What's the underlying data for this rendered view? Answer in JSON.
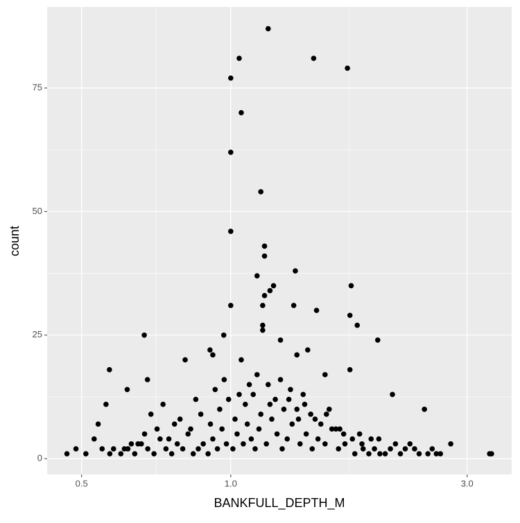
{
  "chart_data": {
    "type": "scatter",
    "x_label": "BANKFULL_DEPTH_M",
    "y_label": "count",
    "x_scale": "log",
    "grid": true,
    "color": "#000000",
    "xlim": [
      0.426,
      3.69
    ],
    "ylim": [
      -3.2,
      91.4
    ],
    "xticks": [
      0.5,
      {
        "value": 1,
        "label": "1.0"
      },
      {
        "value": 3,
        "label": "3.0"
      }
    ],
    "yticks": [
      0,
      25,
      50,
      75
    ],
    "series": [
      {
        "name": "count",
        "color": "#000000",
        "x": [
          1.19,
          1.04,
          1.47,
          1.72,
          1.0,
          1.05,
          1.0,
          1.15,
          1.0,
          1.17,
          1.17,
          1.35,
          1.13,
          1.22,
          1.75,
          1.2,
          1.17,
          1.0,
          1.16,
          1.34,
          1.49,
          1.74,
          1.8,
          1.16,
          1.16,
          0.968,
          0.669,
          1.98,
          1.26,
          0.908,
          1.43,
          0.92,
          1.36,
          0.569,
          0.809,
          1.05,
          1.74,
          1.55,
          0.679,
          2.12,
          0.618,
          0.56,
          2.46,
          0.54,
          2.78,
          3.33,
          3.36,
          0.467,
          0.487,
          0.53,
          0.6,
          0.62,
          0.64,
          0.66,
          0.68,
          0.7,
          0.72,
          0.74,
          0.76,
          0.78,
          0.8,
          0.82,
          0.84,
          0.86,
          0.88,
          0.9,
          0.92,
          0.94,
          0.96,
          0.98,
          1.01,
          1.03,
          1.06,
          1.08,
          1.1,
          1.12,
          1.14,
          1.18,
          1.21,
          1.24,
          1.27,
          1.3,
          1.33,
          1.38,
          1.42,
          1.46,
          1.5,
          1.55,
          1.6,
          1.65,
          1.7,
          1.78,
          1.85,
          1.92,
          2.0,
          2.1,
          2.2,
          2.3,
          2.4,
          2.55,
          2.65,
          0.58,
          0.63,
          0.67,
          0.71,
          0.75,
          0.79,
          0.83,
          0.87,
          0.91,
          0.95,
          0.99,
          1.02,
          1.07,
          1.11,
          1.15,
          1.19,
          1.23,
          1.28,
          1.32,
          1.37,
          1.41,
          1.45,
          1.52,
          1.58,
          1.63,
          1.69,
          1.76,
          1.84,
          1.95,
          2.05,
          0.69,
          0.73,
          0.77,
          0.85,
          0.93,
          0.97,
          1.04,
          1.09,
          1.13,
          1.2,
          1.26,
          1.31,
          1.36,
          1.4,
          1.48,
          1.56,
          1.66,
          1.82,
          1.99,
          2.25,
          0.51,
          0.55,
          0.57,
          0.61,
          0.65,
          2.35,
          2.5,
          2.6,
          2.15,
          1.9
        ],
        "values": [
          87,
          81,
          81,
          79,
          77,
          70,
          62,
          54,
          46,
          43,
          41,
          38,
          37,
          35,
          35,
          34,
          33,
          31,
          31,
          31,
          30,
          29,
          27,
          27,
          26,
          25,
          25,
          24,
          24,
          22,
          22,
          21,
          21,
          18,
          20,
          20,
          18,
          17,
          16,
          13,
          14,
          11,
          10,
          7,
          3,
          1,
          1,
          1,
          2,
          4,
          1,
          2,
          1,
          3,
          2,
          1,
          4,
          2,
          1,
          3,
          2,
          5,
          1,
          2,
          3,
          1,
          4,
          2,
          6,
          3,
          2,
          5,
          3,
          7,
          4,
          2,
          6,
          3,
          8,
          5,
          2,
          4,
          7,
          3,
          5,
          2,
          4,
          3,
          6,
          2,
          3,
          1,
          2,
          4,
          1,
          2,
          1,
          3,
          1,
          2,
          1,
          2,
          3,
          5,
          6,
          4,
          8,
          6,
          9,
          7,
          10,
          12,
          8,
          11,
          13,
          9,
          15,
          12,
          10,
          14,
          8,
          11,
          9,
          7,
          10,
          6,
          5,
          4,
          3,
          2,
          1,
          9,
          11,
          7,
          12,
          14,
          16,
          13,
          15,
          17,
          11,
          16,
          12,
          10,
          13,
          8,
          9,
          6,
          5,
          4,
          2,
          1,
          2,
          1,
          2,
          3,
          2,
          1,
          1,
          3,
          1
        ]
      }
    ]
  }
}
